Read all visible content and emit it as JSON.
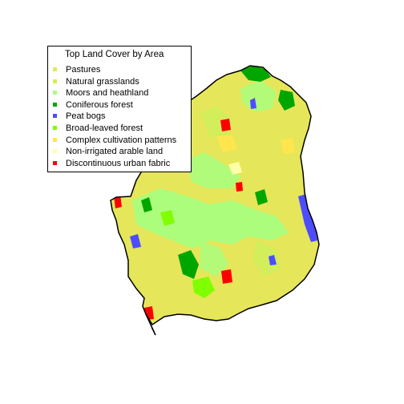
{
  "legend": {
    "title": "Top Land Cover by Area",
    "items": [
      {
        "label": "Pastures",
        "color": "#e6e65a"
      },
      {
        "label": "Natural grasslands",
        "color": "#d2ee5a"
      },
      {
        "label": "Moors and heathland",
        "color": "#a6ff80"
      },
      {
        "label": "Coniferous forest",
        "color": "#00a600"
      },
      {
        "label": "Peat bogs",
        "color": "#4d4dff"
      },
      {
        "label": "Broad-leaved forest",
        "color": "#80ff00"
      },
      {
        "label": "Complex cultivation patterns",
        "color": "#ffe64d"
      },
      {
        "label": "Non-irrigated arable land",
        "color": "#ffffa8"
      },
      {
        "label": "Discontinuous urban fabric",
        "color": "#ff0000"
      }
    ]
  }
}
